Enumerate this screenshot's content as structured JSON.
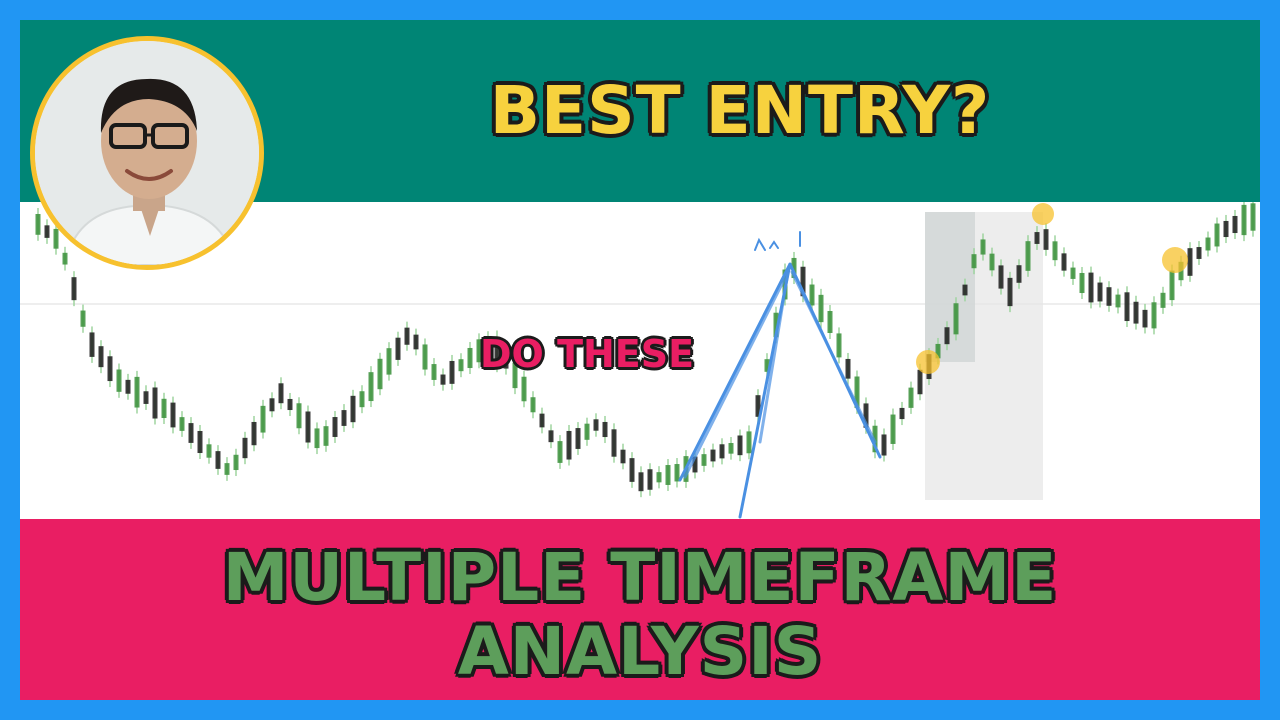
{
  "thumbnail": {
    "headline": "BEST ENTRY?",
    "callout": "DO THESE",
    "subheadline_line1": "MULTIPLE TIMEFRAME",
    "subheadline_line2": "ANALYSIS"
  },
  "colors": {
    "border": "#2196f3",
    "top_band": "#008575",
    "bottom_band": "#e91e63",
    "headline_text": "#f7d23e",
    "subheadline_text": "#5d9e5b",
    "callout_text": "#e91e63",
    "candle_up": "#3a8f3a",
    "candle_down": "#1a1a1a",
    "annotation_lines": "#4a90e2",
    "highlight_dots": "#f7c12e"
  },
  "icons": {
    "presenter": "presenter-portrait"
  }
}
